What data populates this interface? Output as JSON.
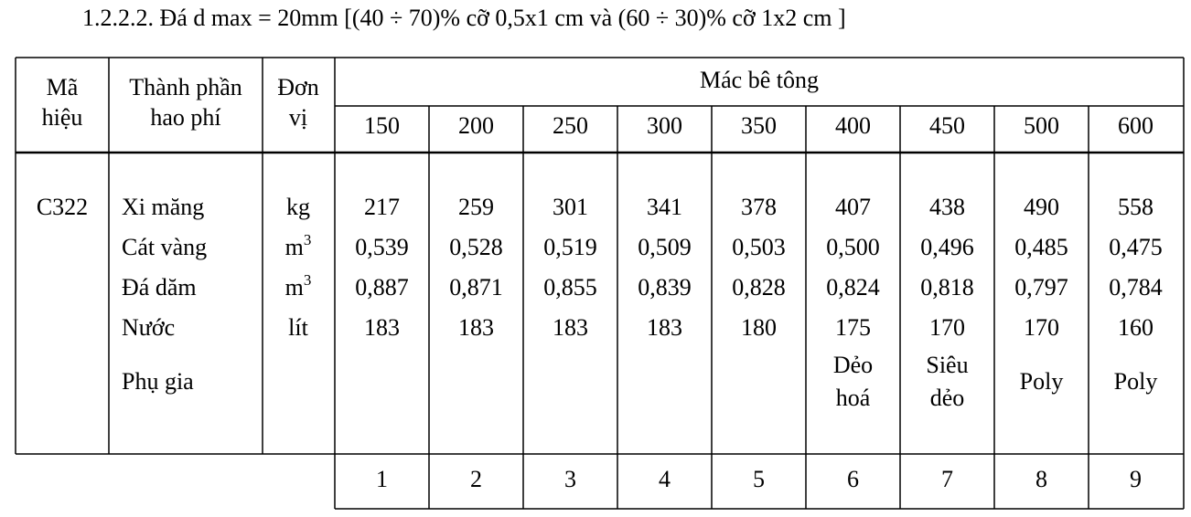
{
  "title": "1.2.2.2. Đá d max = 20mm [(40 ÷ 70)% cỡ 0,5x1 cm và (60 ÷ 30)% cỡ 1x2 cm ]",
  "table": {
    "headers": {
      "code": [
        "Mã",
        "hiệu"
      ],
      "component": [
        "Thành phần",
        "hao phí"
      ],
      "unit": [
        "Đơn",
        "vị"
      ],
      "grade_group": "Mác bê tông",
      "grades": [
        "150",
        "200",
        "250",
        "300",
        "350",
        "400",
        "450",
        "500",
        "600"
      ]
    },
    "code": "C322",
    "components": [
      "Xi măng",
      "Cát vàng",
      "Đá dăm",
      "Nước",
      "Phụ gia"
    ],
    "units": [
      {
        "text": "kg"
      },
      {
        "text": "m",
        "sup": "3"
      },
      {
        "text": "m",
        "sup": "3"
      },
      {
        "text": "lít"
      }
    ],
    "rows": [
      [
        "217",
        "259",
        "301",
        "341",
        "378",
        "407",
        "438",
        "490",
        "558"
      ],
      [
        "0,539",
        "0,528",
        "0,519",
        "0,509",
        "0,503",
        "0,500",
        "0,496",
        "0,485",
        "0,475"
      ],
      [
        "0,887",
        "0,871",
        "0,855",
        "0,839",
        "0,828",
        "0,824",
        "0,818",
        "0,797",
        "0,784"
      ],
      [
        "183",
        "183",
        "183",
        "183",
        "180",
        "175",
        "170",
        "170",
        "160"
      ]
    ],
    "additives": [
      null,
      null,
      null,
      null,
      null,
      [
        "Dẻo",
        "hoá"
      ],
      [
        "Siêu",
        "dẻo"
      ],
      [
        "Poly"
      ],
      [
        "Poly"
      ]
    ],
    "column_numbers": [
      "1",
      "2",
      "3",
      "4",
      "5",
      "6",
      "7",
      "8",
      "9"
    ]
  }
}
